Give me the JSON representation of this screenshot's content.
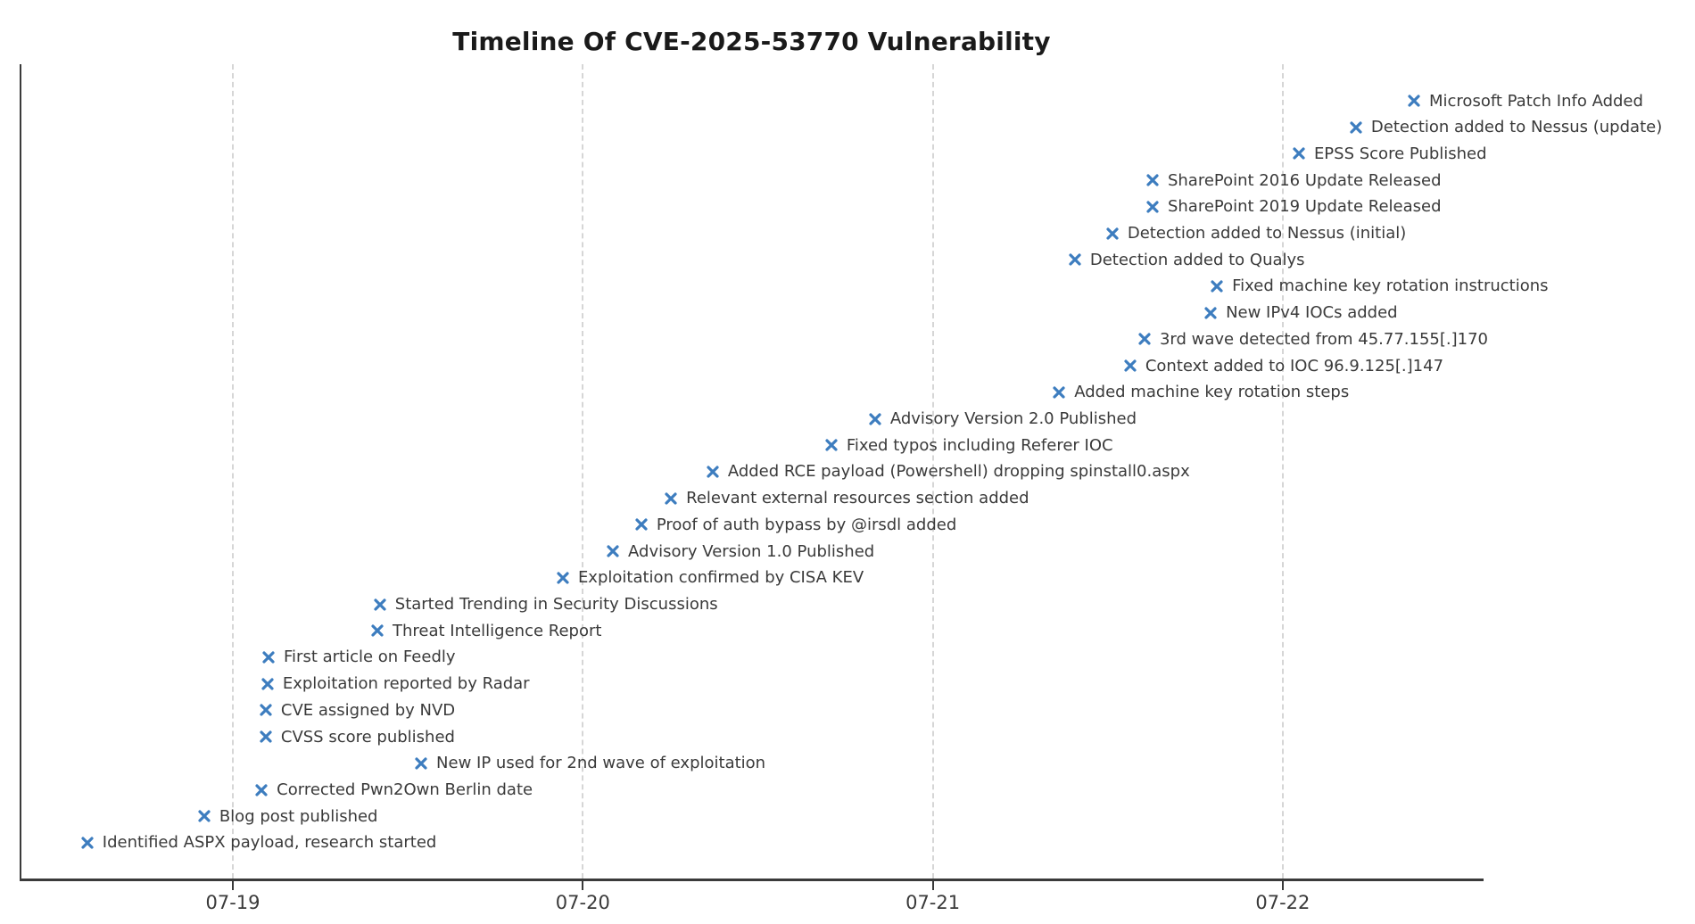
{
  "chart_data": {
    "type": "scatter",
    "subtype": "event-timeline",
    "title": "Timeline Of CVE-2025-53770 Vulnerability",
    "xlabel": "",
    "ylabel": "",
    "grid": "vertical-dashed",
    "legend": "none",
    "x_axis": {
      "tick_labels": [
        "07-19",
        "07-20",
        "07-21",
        "07-22"
      ],
      "tick_values": [
        0,
        1,
        2,
        3
      ],
      "unit": "days since 07-19 00:00",
      "range_days": [
        -0.61,
        3.57
      ]
    },
    "marker": {
      "shape": "x",
      "color": "#3d7dbf"
    },
    "colors": {
      "title": "#1a1a1a",
      "label_text": "#3a3a3a",
      "gridline": "#d6d6d6",
      "axis": "#3a3a3a"
    },
    "events": [
      {
        "label": "Microsoft Patch Info Added",
        "day_offset": 3.375,
        "approx_datetime": "07-22 09:00"
      },
      {
        "label": "Detection added to Nessus (update)",
        "day_offset": 3.209,
        "approx_datetime": "07-22 05:01"
      },
      {
        "label": "EPSS Score Published",
        "day_offset": 3.046,
        "approx_datetime": "07-22 01:06"
      },
      {
        "label": "SharePoint 2016 Update Released",
        "day_offset": 2.628,
        "approx_datetime": "07-21 15:04"
      },
      {
        "label": "SharePoint 2019 Update Released",
        "day_offset": 2.628,
        "approx_datetime": "07-21 15:04"
      },
      {
        "label": "Detection added to Nessus (initial)",
        "day_offset": 2.513,
        "approx_datetime": "07-21 12:19"
      },
      {
        "label": "Detection added to Qualys",
        "day_offset": 2.406,
        "approx_datetime": "07-21 09:45"
      },
      {
        "label": "Fixed machine key rotation instructions",
        "day_offset": 2.812,
        "approx_datetime": "07-21 19:29"
      },
      {
        "label": "New IPv4 IOCs added",
        "day_offset": 2.794,
        "approx_datetime": "07-21 19:03"
      },
      {
        "label": "3rd wave detected from 45.77.155[.]170",
        "day_offset": 2.605,
        "approx_datetime": "07-21 14:31"
      },
      {
        "label": "Context added to IOC 96.9.125[.]147",
        "day_offset": 2.564,
        "approx_datetime": "07-21 13:32"
      },
      {
        "label": "Added machine key rotation steps",
        "day_offset": 2.361,
        "approx_datetime": "07-21 08:40"
      },
      {
        "label": "Advisory Version 2.0 Published",
        "day_offset": 1.835,
        "approx_datetime": "07-20 20:02"
      },
      {
        "label": "Fixed typos including Referer IOC",
        "day_offset": 1.71,
        "approx_datetime": "07-20 17:02"
      },
      {
        "label": "Added RCE payload (Powershell) dropping spinstall0.aspx",
        "day_offset": 1.371,
        "approx_datetime": "07-20 08:54"
      },
      {
        "label": "Relevant external resources section added",
        "day_offset": 1.252,
        "approx_datetime": "07-20 06:03"
      },
      {
        "label": "Proof of auth bypass by @irsdl added",
        "day_offset": 1.167,
        "approx_datetime": "07-20 04:00"
      },
      {
        "label": "Advisory Version 1.0 Published",
        "day_offset": 1.086,
        "approx_datetime": "07-20 02:04"
      },
      {
        "label": "Exploitation confirmed by CISA KEV",
        "day_offset": 0.943,
        "approx_datetime": "07-19 22:38"
      },
      {
        "label": "Started Trending in Security Discussions",
        "day_offset": 0.42,
        "approx_datetime": "07-19 10:05"
      },
      {
        "label": "Threat Intelligence Report",
        "day_offset": 0.413,
        "approx_datetime": "07-19 09:55"
      },
      {
        "label": "First article on Feedly",
        "day_offset": 0.102,
        "approx_datetime": "07-19 02:27"
      },
      {
        "label": "Exploitation reported by Radar",
        "day_offset": 0.099,
        "approx_datetime": "07-19 02:23"
      },
      {
        "label": "CVE assigned by NVD",
        "day_offset": 0.094,
        "approx_datetime": "07-19 02:15"
      },
      {
        "label": "CVSS score published",
        "day_offset": 0.094,
        "approx_datetime": "07-19 02:15"
      },
      {
        "label": "New IP used for 2nd wave of exploitation",
        "day_offset": 0.538,
        "approx_datetime": "07-19 12:55"
      },
      {
        "label": "Corrected Pwn2Own Berlin date",
        "day_offset": 0.082,
        "approx_datetime": "07-19 01:58"
      },
      {
        "label": "Blog post published",
        "day_offset": -0.082,
        "approx_datetime": "07-18 22:02"
      },
      {
        "label": "Identified ASPX payload, research started",
        "day_offset": -0.416,
        "approx_datetime": "07-18 14:01"
      }
    ]
  }
}
